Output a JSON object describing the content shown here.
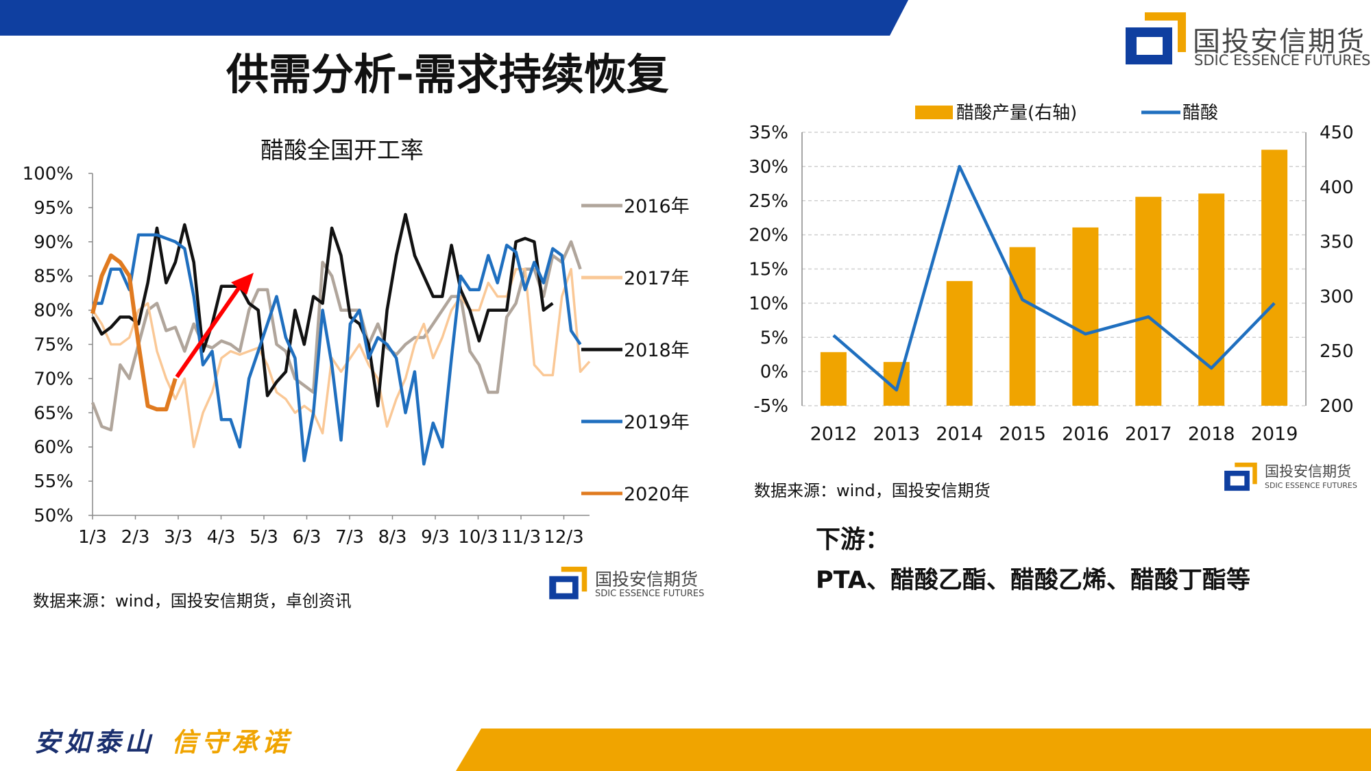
{
  "header": {
    "title": "供需分析-需求持续恢复",
    "logo_cn": "国投安信期货",
    "logo_en": "SDIC ESSENCE FUTURES"
  },
  "colors": {
    "brand_blue": "#0f3fa0",
    "brand_orange": "#f0a400"
  },
  "left_panel": {
    "source": "数据来源：wind，国投安信期货，卓创资讯",
    "logo_cn": "国投安信期货",
    "logo_en": "SDIC ESSENCE FUTURES"
  },
  "right_panel": {
    "source": "数据来源：wind，国投安信期货",
    "logo_cn": "国投安信期货",
    "logo_en": "SDIC ESSENCE FUTURES"
  },
  "downstream": {
    "heading": "下游：",
    "text": "PTA、醋酸乙酯、醋酸乙烯、醋酸丁酯等"
  },
  "footer": {
    "slogan_1": "安如泰山",
    "slogan_2": "信守承诺"
  },
  "chart_data": [
    {
      "type": "line",
      "title": "醋酸全国开工率",
      "xlabel": "",
      "ylabel": "",
      "x_ticks": [
        "1/3",
        "2/3",
        "3/3",
        "4/3",
        "5/3",
        "6/3",
        "7/3",
        "8/3",
        "9/3",
        "10/3",
        "11/3",
        "12/3"
      ],
      "ylim": [
        50,
        100
      ],
      "y_ticks": [
        "100%",
        "95%",
        "90%",
        "85%",
        "80%",
        "75%",
        "70%",
        "65%",
        "60%",
        "55%",
        "50%"
      ],
      "grid": false,
      "legend_position": "right",
      "annotation": "red-arrow-up",
      "series": [
        {
          "name": "2016年",
          "color": "#b0a59b",
          "values": [
            66.5,
            63,
            62.5,
            72,
            70,
            75,
            80,
            81,
            77,
            77.5,
            74,
            78,
            75,
            74.5,
            75.5,
            75,
            74,
            80,
            83,
            83,
            75,
            74,
            70,
            69,
            68,
            87,
            85,
            80,
            80,
            80,
            75,
            78,
            74.5,
            73.5,
            75,
            76,
            76,
            78,
            80,
            82,
            82,
            74,
            72,
            68,
            68,
            79,
            81,
            86,
            86,
            82,
            88,
            87,
            90,
            86
          ]
        },
        {
          "name": "2017年",
          "color": "#fac896",
          "values": [
            80,
            78,
            75,
            75,
            76,
            80,
            81,
            74,
            70,
            67,
            70,
            60,
            65,
            68,
            73,
            74,
            73.5,
            74,
            74.5,
            72,
            68,
            67,
            65,
            66,
            65,
            62,
            73,
            71,
            73,
            75,
            72,
            70,
            63,
            67,
            70,
            75,
            78,
            73,
            76,
            80,
            82,
            80,
            80,
            84,
            82,
            82,
            86,
            86,
            72,
            70.5,
            70.5,
            82,
            86,
            71,
            72.5
          ]
        },
        {
          "name": "2018年",
          "color": "#111111",
          "values": [
            79,
            76.5,
            77.5,
            79,
            79,
            78,
            84,
            92,
            84,
            87,
            92.5,
            87,
            74,
            78,
            83.5,
            83.5,
            83.5,
            81,
            80,
            67.5,
            69.5,
            71,
            80,
            75,
            82,
            81,
            92,
            88,
            79,
            78,
            75,
            66,
            80,
            88,
            94,
            88,
            85,
            82,
            82,
            89.5,
            83,
            80,
            75.5,
            80,
            80,
            80,
            90,
            90.5,
            90,
            80,
            81
          ]
        },
        {
          "name": "2019年",
          "color": "#1f6fbf",
          "values": [
            81,
            81,
            86,
            86,
            83,
            91,
            91,
            91,
            90.5,
            90,
            89,
            82,
            72,
            74,
            64,
            64,
            60,
            70,
            74,
            78,
            82,
            76,
            73,
            58,
            65,
            80,
            72,
            61,
            78,
            80,
            73,
            76,
            75,
            73,
            65,
            71,
            57.5,
            63.5,
            60,
            73,
            85,
            83,
            83,
            88,
            84,
            89.5,
            88.5,
            83,
            87,
            84,
            89,
            88,
            77,
            75
          ]
        },
        {
          "name": "2020年",
          "color": "#e07a1f",
          "values": [
            79.5,
            85,
            88,
            87,
            85,
            75,
            66,
            65.5,
            65.5,
            70
          ]
        }
      ]
    },
    {
      "type": "bar+line",
      "title": "",
      "categories": [
        "2012",
        "2013",
        "2014",
        "2015",
        "2016",
        "2017",
        "2018",
        "2019"
      ],
      "y_left_ticks": [
        "35%",
        "30%",
        "25%",
        "20%",
        "15%",
        "10%",
        "5%",
        "0%",
        "-5%"
      ],
      "y_left_range": [
        -5,
        35
      ],
      "y_right_ticks": [
        "450",
        "400",
        "350",
        "300",
        "250",
        "200"
      ],
      "y_right_range": [
        200,
        450
      ],
      "grid": true,
      "legend_position": "top",
      "series": [
        {
          "name": "醋酸产量(右轴)",
          "kind": "bar",
          "axis": "right",
          "color": "#f0a400",
          "values": [
            249,
            240,
            314,
            345,
            363,
            391,
            394,
            434
          ]
        },
        {
          "name": "醋酸",
          "kind": "line",
          "axis": "left",
          "color": "#1f6fbf",
          "values": [
            5.3,
            -2.7,
            30,
            10.5,
            5.5,
            8,
            0.5,
            10
          ]
        }
      ]
    }
  ]
}
